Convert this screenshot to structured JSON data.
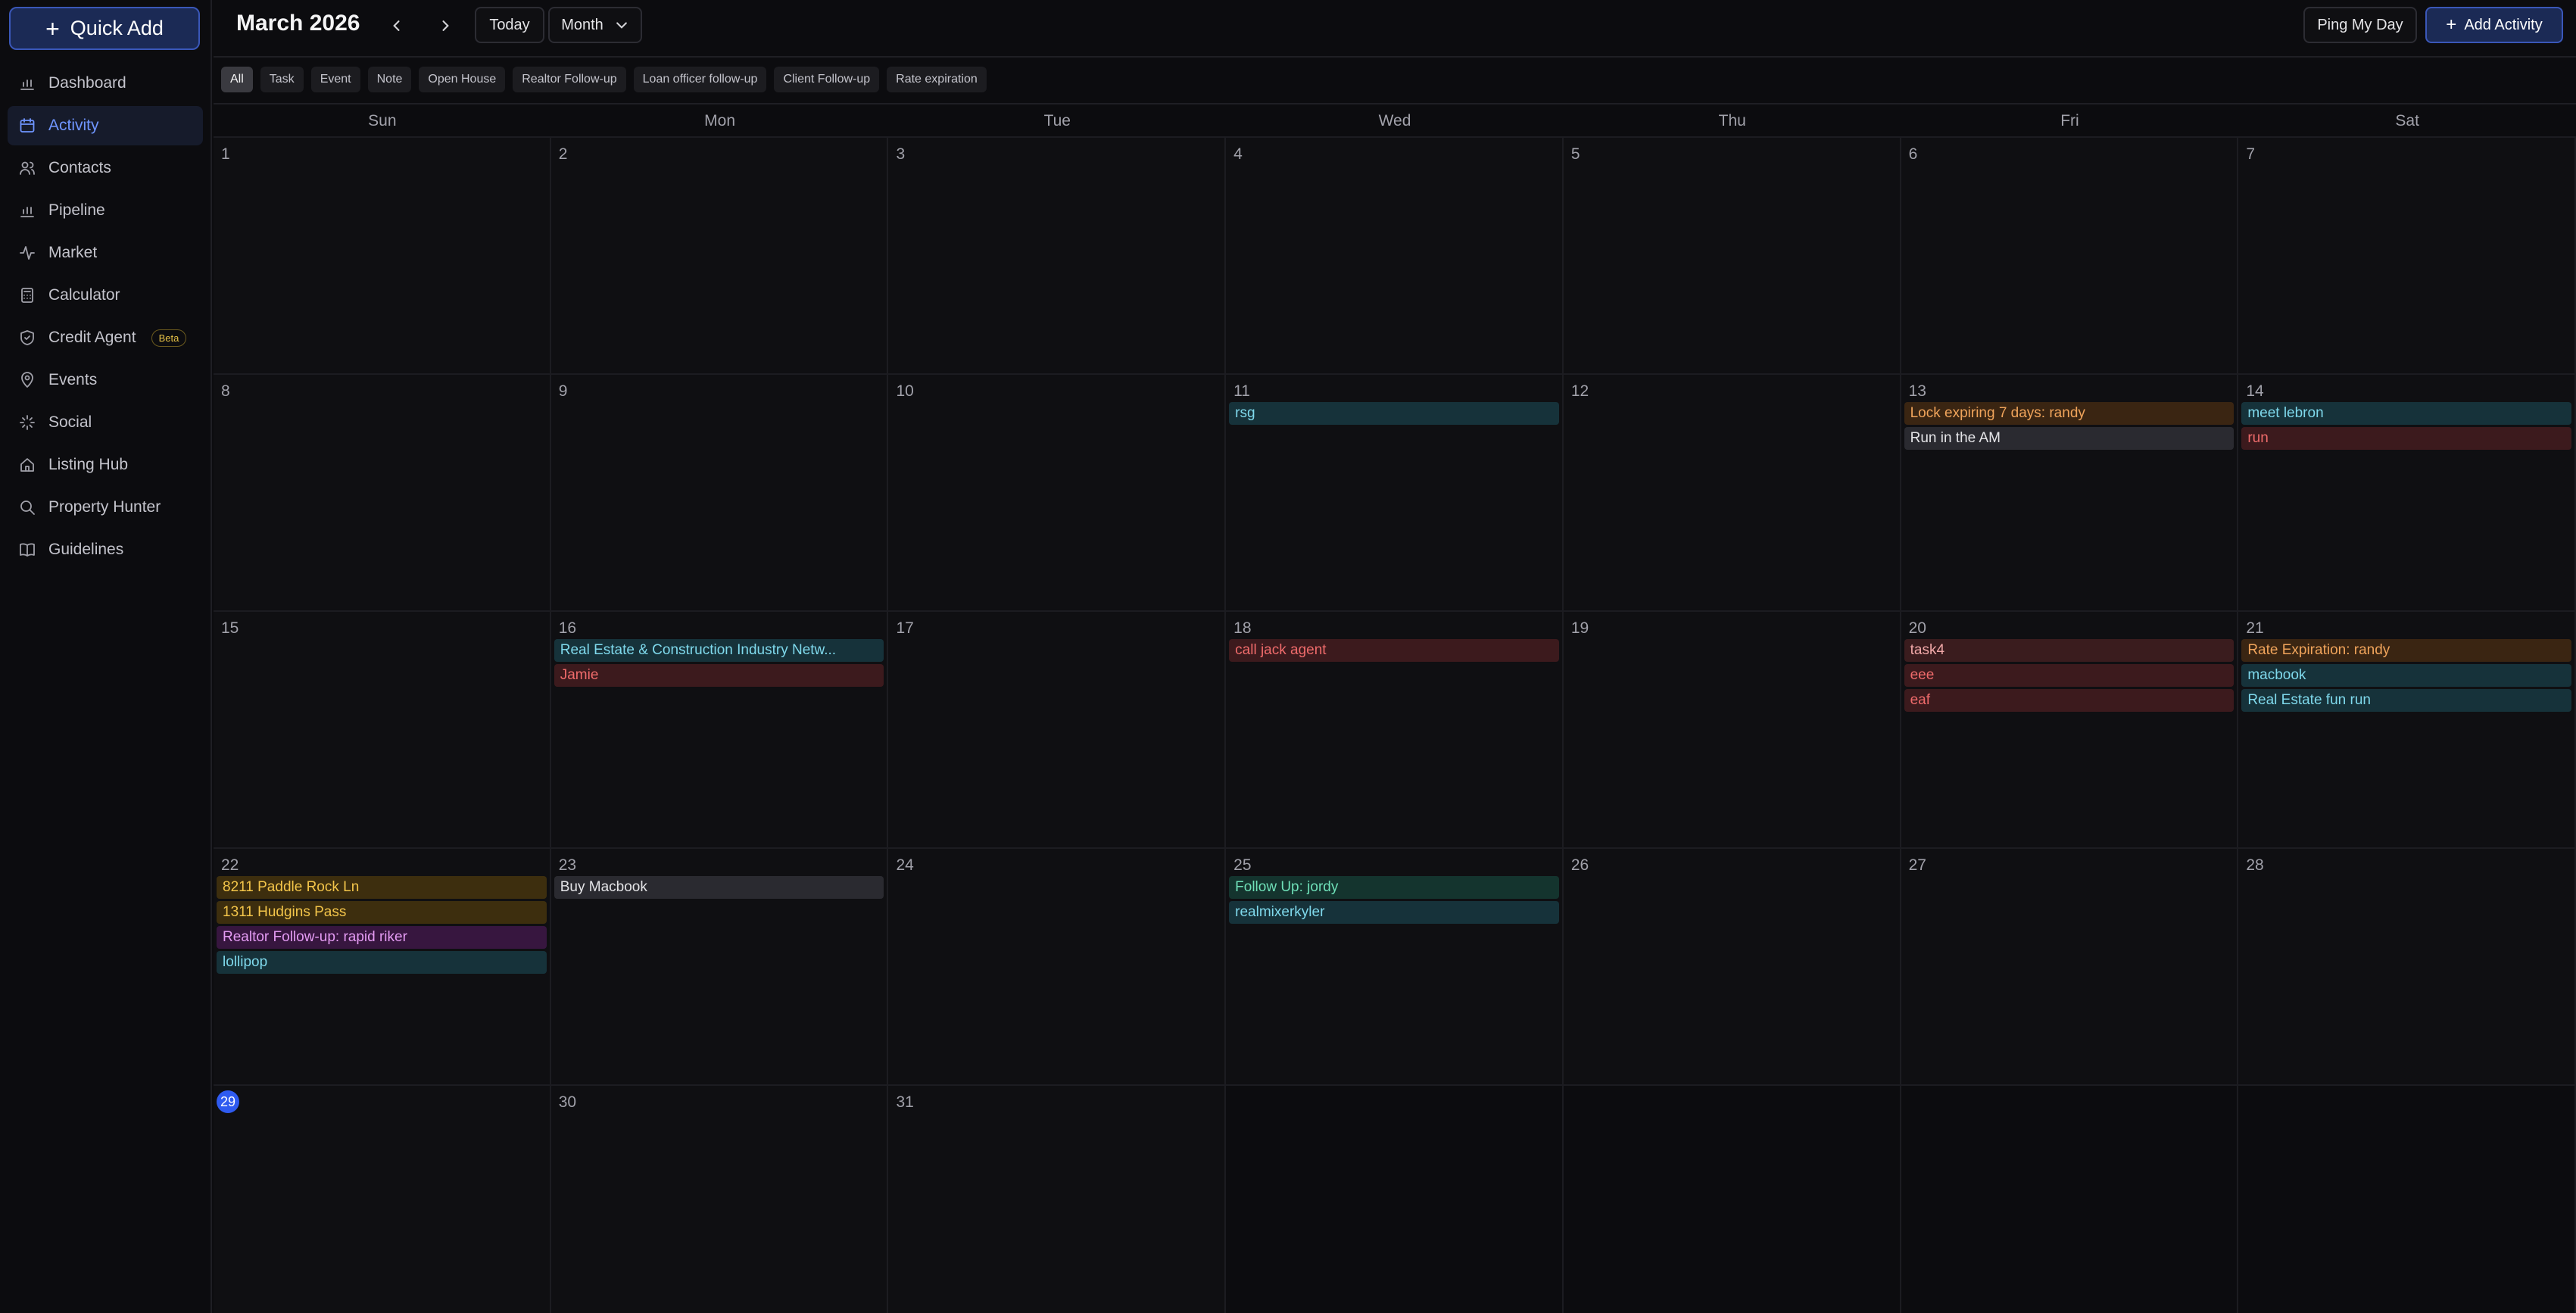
{
  "sidebar": {
    "quick_add": "Quick Add",
    "items": [
      {
        "label": "Dashboard",
        "icon": "bar-chart-icon",
        "active": false
      },
      {
        "label": "Activity",
        "icon": "calendar-icon",
        "active": true
      },
      {
        "label": "Contacts",
        "icon": "users-icon",
        "active": false
      },
      {
        "label": "Pipeline",
        "icon": "bar-chart-icon",
        "active": false
      },
      {
        "label": "Market",
        "icon": "activity-icon",
        "active": false
      },
      {
        "label": "Calculator",
        "icon": "calculator-icon",
        "active": false
      },
      {
        "label": "Credit Agent",
        "icon": "shield-icon",
        "active": false,
        "badge": "Beta"
      },
      {
        "label": "Events",
        "icon": "map-pin-icon",
        "active": false
      },
      {
        "label": "Social",
        "icon": "sparkles-icon",
        "active": false
      },
      {
        "label": "Listing Hub",
        "icon": "home-icon",
        "active": false
      },
      {
        "label": "Property Hunter",
        "icon": "search-icon",
        "active": false
      },
      {
        "label": "Guidelines",
        "icon": "book-icon",
        "active": false
      }
    ]
  },
  "header": {
    "title": "March 2026",
    "today": "Today",
    "view": "Month",
    "ping": "Ping My Day",
    "add_activity": "Add Activity"
  },
  "filters": [
    "All",
    "Task",
    "Event",
    "Note",
    "Open House",
    "Realtor Follow-up",
    "Loan officer follow-up",
    "Client Follow-up",
    "Rate expiration"
  ],
  "calendar": {
    "weekdays": [
      "Sun",
      "Mon",
      "Tue",
      "Wed",
      "Thu",
      "Fri",
      "Sat"
    ],
    "today": 29,
    "weeks": [
      [
        {
          "day": "1"
        },
        {
          "day": "2"
        },
        {
          "day": "3"
        },
        {
          "day": "4"
        },
        {
          "day": "5"
        },
        {
          "day": "6"
        },
        {
          "day": "7"
        }
      ],
      [
        {
          "day": "8"
        },
        {
          "day": "9"
        },
        {
          "day": "10"
        },
        {
          "day": "11",
          "events": [
            {
              "label": "rsg",
              "color": "teal"
            }
          ]
        },
        {
          "day": "12"
        },
        {
          "day": "13",
          "events": [
            {
              "label": "Lock expiring 7 days: randy",
              "color": "orange"
            },
            {
              "label": "Run in the AM",
              "color": "gray"
            }
          ]
        },
        {
          "day": "14",
          "events": [
            {
              "label": "meet lebron",
              "color": "teal"
            },
            {
              "label": "run",
              "color": "red"
            }
          ]
        }
      ],
      [
        {
          "day": "15"
        },
        {
          "day": "16",
          "events": [
            {
              "label": "Real Estate & Construction Industry Netw...",
              "color": "teal"
            },
            {
              "label": "Jamie",
              "color": "red"
            }
          ]
        },
        {
          "day": "17"
        },
        {
          "day": "18",
          "events": [
            {
              "label": "call jack agent",
              "color": "red"
            }
          ]
        },
        {
          "day": "19"
        },
        {
          "day": "20",
          "events": [
            {
              "label": "task4",
              "color": "redlight"
            },
            {
              "label": "eee",
              "color": "red"
            },
            {
              "label": "eaf",
              "color": "red"
            }
          ]
        },
        {
          "day": "21",
          "events": [
            {
              "label": "Rate Expiration: randy",
              "color": "orange"
            },
            {
              "label": "macbook",
              "color": "teal"
            },
            {
              "label": "Real Estate fun run",
              "color": "teal"
            }
          ]
        }
      ],
      [
        {
          "day": "22",
          "events": [
            {
              "label": "8211 Paddle Rock Ln",
              "color": "gold"
            },
            {
              "label": "1311 Hudgins Pass",
              "color": "gold"
            },
            {
              "label": "Realtor Follow-up: rapid riker",
              "color": "purple"
            },
            {
              "label": "lollipop",
              "color": "teal"
            }
          ]
        },
        {
          "day": "23",
          "events": [
            {
              "label": "Buy Macbook",
              "color": "gray"
            }
          ]
        },
        {
          "day": "24"
        },
        {
          "day": "25",
          "events": [
            {
              "label": "Follow Up: jordy",
              "color": "green"
            },
            {
              "label": "realmixerkyler",
              "color": "teal"
            }
          ]
        },
        {
          "day": "26"
        },
        {
          "day": "27"
        },
        {
          "day": "28"
        }
      ],
      [
        {
          "day": "29"
        },
        {
          "day": "30"
        },
        {
          "day": "31"
        },
        {
          "day": ""
        },
        {
          "day": ""
        },
        {
          "day": ""
        },
        {
          "day": ""
        }
      ]
    ]
  }
}
